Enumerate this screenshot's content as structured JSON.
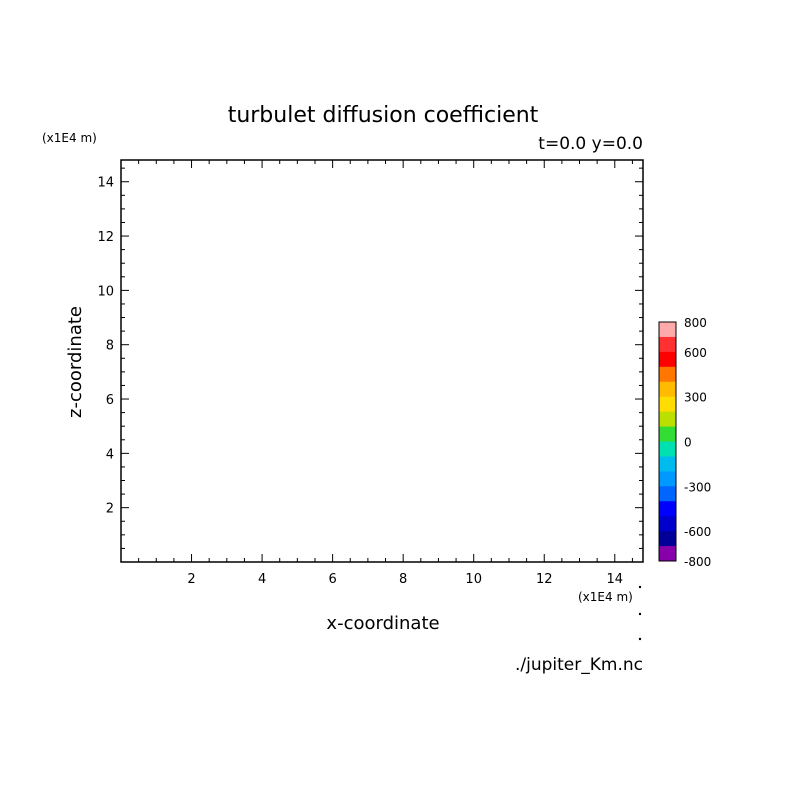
{
  "chart_data": {
    "type": "contour",
    "title": "turbulet diffusion coefficient",
    "subtitle": "t=0.0 y=0.0",
    "xlabel": "x-coordinate",
    "ylabel": "z-coordinate",
    "x_unit": "(x1E4 m)",
    "y_unit": "(x1E4 m)",
    "xlim": [
      0,
      14.8
    ],
    "ylim": [
      0,
      14.8
    ],
    "x_ticks": [
      2,
      4,
      6,
      8,
      10,
      12,
      14
    ],
    "y_ticks": [
      2,
      4,
      6,
      8,
      10,
      12,
      14
    ],
    "grid": false,
    "data_visible": false,
    "colorbar": {
      "range": [
        -800,
        800
      ],
      "tick_labels": [
        {
          "label": "800",
          "value": 800
        },
        {
          "label": "600",
          "value": 600
        },
        {
          "label": "300",
          "value": 300
        },
        {
          "label": "0",
          "value": 0
        },
        {
          "label": "-300",
          "value": -300
        },
        {
          "label": "-600",
          "value": -600
        },
        {
          "label": "-800",
          "value": -800
        }
      ],
      "colors_top_to_bottom": [
        "#ffaaaa",
        "#ff3030",
        "#ff0000",
        "#ff7700",
        "#ffbb00",
        "#ffdd00",
        "#bbe000",
        "#33dd33",
        "#00e0b0",
        "#00bbee",
        "#0099ff",
        "#0066ff",
        "#0000ff",
        "#0000cc",
        "#000099",
        "#8800aa"
      ]
    },
    "source_file": "./jupiter_Km.nc"
  }
}
